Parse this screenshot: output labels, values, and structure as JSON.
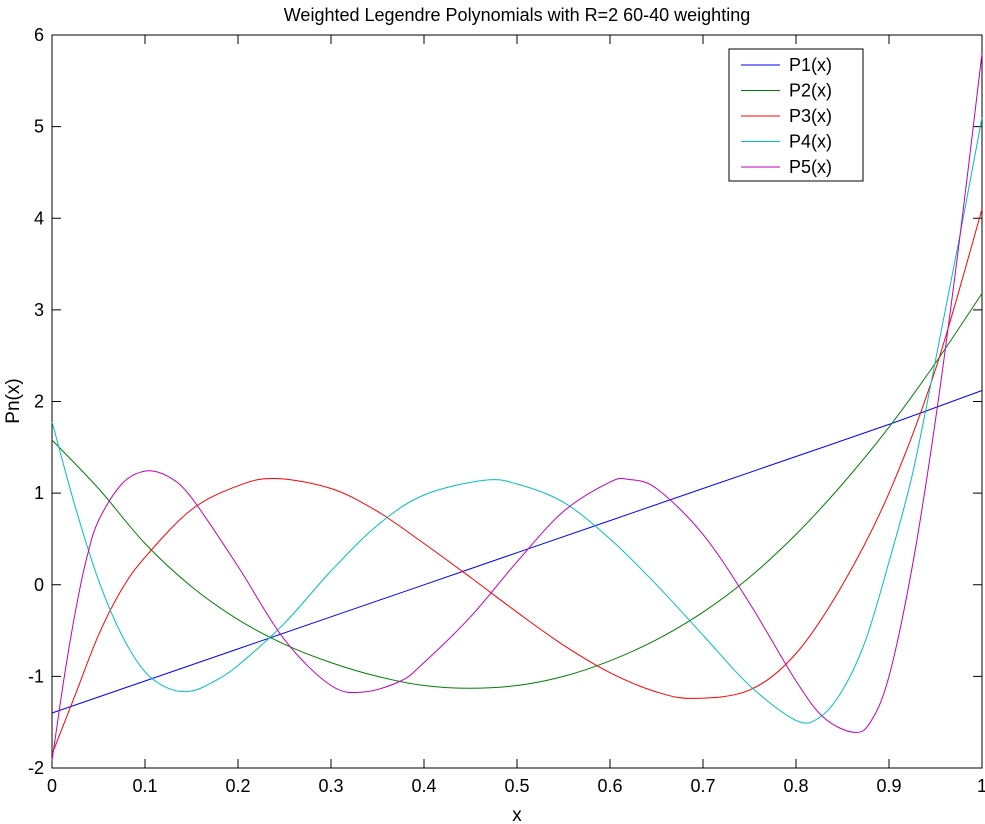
{
  "chart_data": {
    "type": "line",
    "title": "Weighted Legendre Polynomials with R=2 60-40 weighting",
    "xlabel": "x",
    "ylabel": "Pn(x)",
    "xlim": [
      0,
      1
    ],
    "ylim": [
      -2,
      6
    ],
    "grid": false,
    "legend_position": "top-right",
    "x_ticks": [
      0,
      0.1,
      0.2,
      0.3,
      0.4,
      0.5,
      0.6,
      0.7,
      0.8,
      0.9,
      1
    ],
    "x_tick_labels": [
      "0",
      "0.1",
      "0.2",
      "0.3",
      "0.4",
      "0.5",
      "0.6",
      "0.7",
      "0.8",
      "0.9",
      "1"
    ],
    "y_ticks": [
      -2,
      -1,
      0,
      1,
      2,
      3,
      4,
      5,
      6
    ],
    "y_tick_labels": [
      "-2",
      "-1",
      "0",
      "1",
      "2",
      "3",
      "4",
      "5",
      "6"
    ],
    "series": [
      {
        "name": "P1(x)",
        "color": "#0000ff",
        "x": [
          0,
          0.1,
          0.2,
          0.3,
          0.4,
          0.5,
          0.6,
          0.7,
          0.8,
          0.9,
          1.0
        ],
        "y": [
          -1.4,
          -1.05,
          -0.7,
          -0.35,
          0.0,
          0.35,
          0.7,
          1.05,
          1.4,
          1.75,
          2.12
        ]
      },
      {
        "name": "P2(x)",
        "color": "#008000",
        "x": [
          0,
          0.05,
          0.1,
          0.15,
          0.2,
          0.25,
          0.3,
          0.35,
          0.4,
          0.45,
          0.5,
          0.55,
          0.6,
          0.65,
          0.7,
          0.75,
          0.8,
          0.85,
          0.9,
          0.95,
          1.0
        ],
        "y": [
          1.58,
          1.05,
          0.45,
          -0.02,
          -0.38,
          -0.65,
          -0.85,
          -1.0,
          -1.1,
          -1.13,
          -1.1,
          -1.0,
          -0.83,
          -0.6,
          -0.3,
          0.08,
          0.55,
          1.1,
          1.72,
          2.42,
          3.18
        ]
      },
      {
        "name": "P3(x)",
        "color": "#ff0000",
        "x": [
          0,
          0.025,
          0.05,
          0.075,
          0.1,
          0.15,
          0.2,
          0.24,
          0.3,
          0.35,
          0.4,
          0.45,
          0.5,
          0.55,
          0.6,
          0.65,
          0.69,
          0.75,
          0.8,
          0.85,
          0.9,
          0.95,
          1.0
        ],
        "y": [
          -1.85,
          -1.2,
          -0.55,
          -0.05,
          0.3,
          0.82,
          1.08,
          1.16,
          1.05,
          0.8,
          0.45,
          0.08,
          -0.3,
          -0.66,
          -0.96,
          -1.17,
          -1.24,
          -1.15,
          -0.75,
          0.0,
          1.0,
          2.35,
          4.1
        ]
      },
      {
        "name": "P4(x)",
        "color": "#00bfbf",
        "x": [
          0,
          0.025,
          0.05,
          0.075,
          0.1,
          0.125,
          0.15,
          0.175,
          0.2,
          0.25,
          0.3,
          0.35,
          0.4,
          0.465,
          0.5,
          0.55,
          0.6,
          0.65,
          0.7,
          0.75,
          0.8,
          0.825,
          0.85,
          0.875,
          0.9,
          0.925,
          0.95,
          0.975,
          1.0
        ],
        "y": [
          1.78,
          0.85,
          0.05,
          -0.55,
          -0.95,
          -1.13,
          -1.16,
          -1.05,
          -0.88,
          -0.42,
          0.15,
          0.65,
          0.98,
          1.14,
          1.1,
          0.9,
          0.5,
          0.0,
          -0.55,
          -1.1,
          -1.48,
          -1.45,
          -1.15,
          -0.6,
          0.25,
          1.2,
          2.45,
          3.75,
          5.1
        ]
      },
      {
        "name": "P5(x)",
        "color": "#bf00bf",
        "x": [
          0,
          0.0125,
          0.025,
          0.0375,
          0.05,
          0.075,
          0.1,
          0.125,
          0.15,
          0.2,
          0.25,
          0.3,
          0.335,
          0.375,
          0.4,
          0.45,
          0.5,
          0.55,
          0.6,
          0.62,
          0.65,
          0.7,
          0.75,
          0.8,
          0.83,
          0.862,
          0.88,
          0.9,
          0.925,
          0.95,
          0.975,
          1.0
        ],
        "y": [
          -1.92,
          -1.05,
          -0.3,
          0.3,
          0.7,
          1.1,
          1.24,
          1.18,
          0.95,
          0.2,
          -0.6,
          -1.1,
          -1.17,
          -1.05,
          -0.85,
          -0.35,
          0.25,
          0.8,
          1.12,
          1.15,
          1.05,
          0.55,
          -0.2,
          -1.05,
          -1.45,
          -1.61,
          -1.5,
          -1.0,
          0.2,
          1.8,
          3.7,
          5.8
        ]
      }
    ]
  }
}
